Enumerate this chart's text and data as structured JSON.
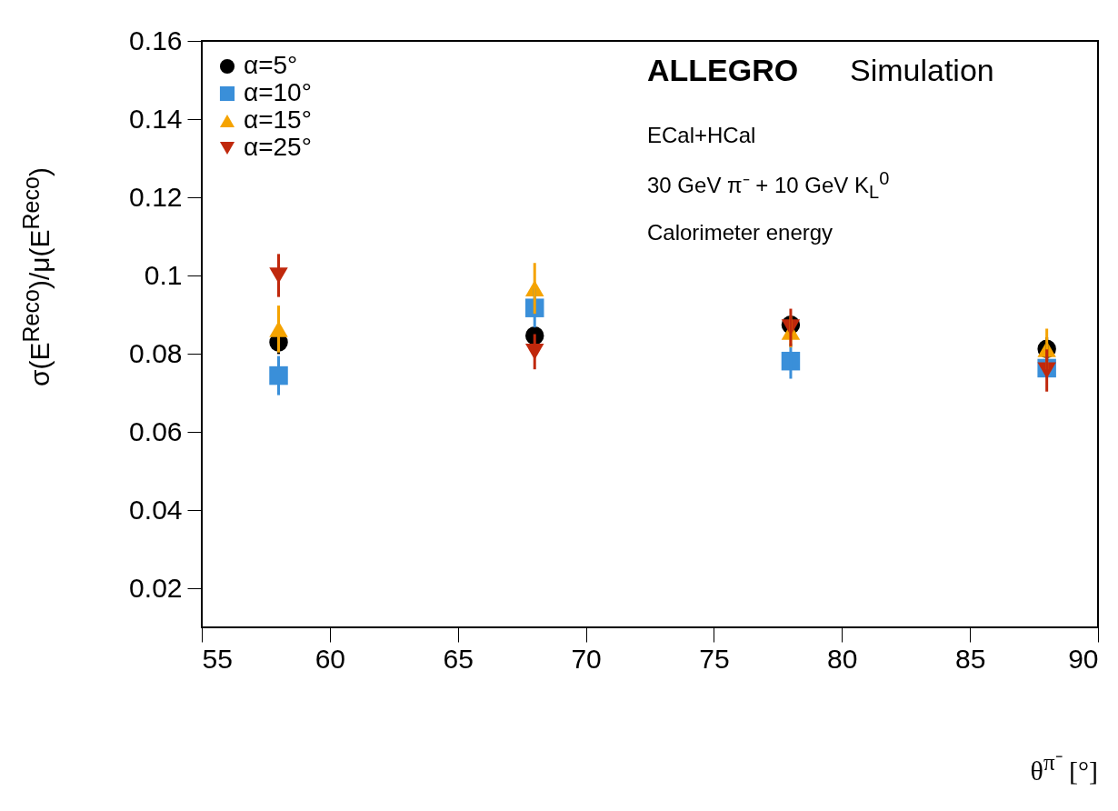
{
  "chart_data": {
    "type": "scatter",
    "xlabel": "θ$^{π⁻}$ [°]",
    "ylabel": "σ(E$^{Reco}$)/μ(E$^{Reco}$)",
    "x": [
      58,
      68,
      78,
      88
    ],
    "series": [
      {
        "name": "α=5°",
        "color": "#000000",
        "marker": "circle",
        "values": [
          0.0829,
          0.0846,
          0.0874,
          0.0812
        ],
        "errors": [
          0.003,
          null,
          null,
          0.003
        ]
      },
      {
        "name": "α=10°",
        "color": "#3a8fd9",
        "marker": "square",
        "values": [
          0.0744,
          0.0917,
          0.0781,
          0.0763
        ],
        "errors": [
          0.005,
          0.005,
          0.0045,
          null
        ]
      },
      {
        "name": "α=15°",
        "color": "#f5a300",
        "marker": "triangle",
        "values": [
          0.0863,
          0.0967,
          0.0856,
          0.0812
        ],
        "errors": [
          0.006,
          0.0065,
          0.004,
          0.0052
        ]
      },
      {
        "name": "α=25°",
        "color": "#c0280c",
        "marker": "triangle-down",
        "values": [
          0.1,
          0.0805,
          0.0867,
          0.0757
        ],
        "errors": [
          0.0055,
          0.0045,
          0.0048,
          0.0054
        ]
      }
    ],
    "xlim": [
      55,
      90
    ],
    "xticks": [
      55,
      60,
      65,
      70,
      75,
      80,
      85,
      90
    ],
    "ylim": [
      0.01,
      0.16
    ],
    "yticks": [
      0.02,
      0.04,
      0.06,
      0.08,
      0.1,
      0.12,
      0.14,
      0.16
    ],
    "legend": "top left",
    "grid": false,
    "annotations": [
      "ALLEGRO",
      "Simulation",
      "ECal+HCal",
      "30 GeV π⁻ + 10 GeV K$_{L}$$^{0}$",
      "Calorimeter energy"
    ]
  }
}
